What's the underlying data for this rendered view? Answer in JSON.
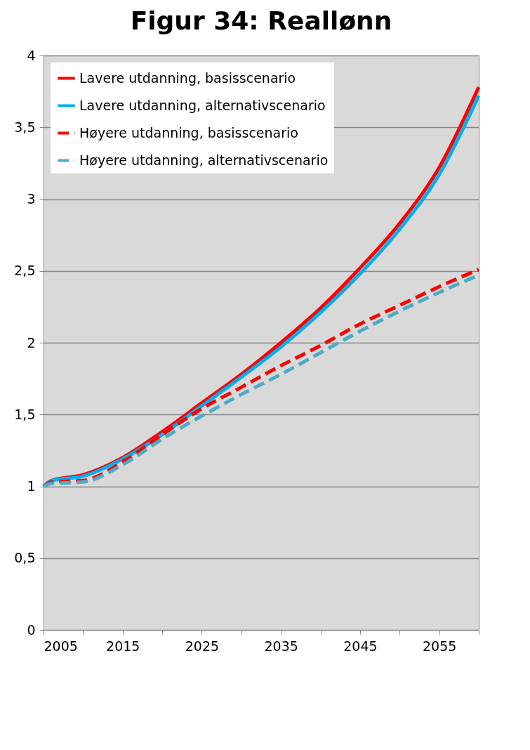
{
  "chart_data": {
    "type": "line",
    "title": "Figur 34: Reallønn",
    "x": [
      2005,
      2006,
      2010,
      2015,
      2020,
      2025,
      2030,
      2035,
      2040,
      2045,
      2050,
      2055,
      2060
    ],
    "series": [
      {
        "name": "Lavere utdanning, basisscenario",
        "color": "#ff0000",
        "line_style": "solid",
        "values": [
          1.0,
          1.04,
          1.08,
          1.2,
          1.38,
          1.58,
          1.78,
          2.0,
          2.24,
          2.52,
          2.83,
          3.22,
          3.78
        ]
      },
      {
        "name": "Lavere utdanning, alternativscenario",
        "color": "#00b0f0",
        "line_style": "solid",
        "values": [
          1.0,
          1.04,
          1.07,
          1.19,
          1.36,
          1.56,
          1.76,
          1.97,
          2.21,
          2.48,
          2.79,
          3.17,
          3.72
        ]
      },
      {
        "name": "Høyere utdanning, basisscenario",
        "color": "#ff0000",
        "line_style": "dashed",
        "values": [
          1.0,
          1.03,
          1.04,
          1.17,
          1.36,
          1.54,
          1.69,
          1.84,
          1.98,
          2.13,
          2.26,
          2.39,
          2.51
        ]
      },
      {
        "name": "Høyere utdanning, alternativscenario",
        "color": "#4bacc6",
        "line_style": "dashed",
        "values": [
          1.0,
          1.02,
          1.03,
          1.15,
          1.33,
          1.49,
          1.64,
          1.78,
          1.93,
          2.08,
          2.22,
          2.35,
          2.47
        ]
      }
    ],
    "xlim": [
      2005,
      2060
    ],
    "xticks": [
      2005,
      {
        "value": 2010,
        "label": null
      },
      2015,
      {
        "value": 2020,
        "label": null
      },
      2025,
      {
        "value": 2030,
        "label": null
      },
      2035,
      {
        "value": 2040,
        "label": null
      },
      2045,
      {
        "value": 2050,
        "label": null
      },
      2055,
      {
        "value": 2060,
        "label": null
      }
    ],
    "ylim": [
      0,
      4
    ],
    "yticks": [
      0,
      {
        "value": 0.5,
        "label": "0,5"
      },
      1,
      {
        "value": 1.5,
        "label": "1,5"
      },
      2,
      {
        "value": 2.5,
        "label": "2,5"
      },
      3,
      {
        "value": 3.5,
        "label": "3,5"
      },
      4
    ],
    "grid": "y",
    "legend": "top left"
  }
}
